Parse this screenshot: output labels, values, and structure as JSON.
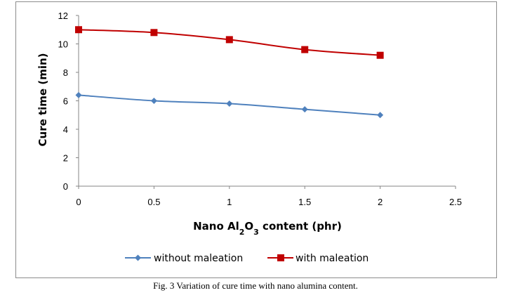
{
  "chart_data": {
    "type": "line",
    "x": [
      0,
      0.5,
      1,
      1.5,
      2
    ],
    "series": [
      {
        "name": "without maleation",
        "values": [
          6.4,
          6.0,
          5.8,
          5.4,
          5.0
        ],
        "color": "#4f81bd",
        "marker": "diamond"
      },
      {
        "name": "with maleation",
        "values": [
          11.0,
          10.8,
          10.3,
          9.6,
          9.2
        ],
        "color": "#c00000",
        "marker": "square"
      }
    ],
    "xlabel_parts": [
      "Nano Al",
      "2",
      "O",
      "3",
      " content (phr)"
    ],
    "ylabel": "Cure time (min)",
    "xlim": [
      0,
      2.5
    ],
    "ylim": [
      0,
      12
    ],
    "x_ticks": [
      "0",
      "0.5",
      "1",
      "1.5",
      "2",
      "2.5"
    ],
    "y_ticks": [
      "0",
      "2",
      "4",
      "6",
      "8",
      "10",
      "12"
    ],
    "grid": false,
    "legend_position": "bottom"
  },
  "caption": "Fig. 3 Variation of cure time with nano alumina content."
}
